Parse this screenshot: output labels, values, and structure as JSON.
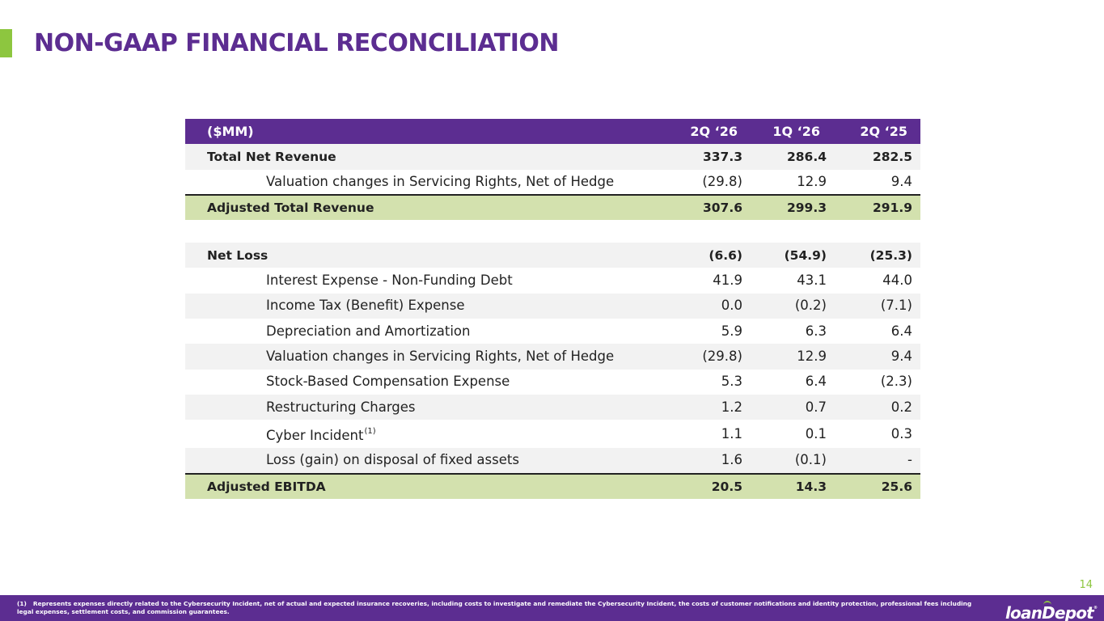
{
  "header": {
    "title": "NON-GAAP FINANCIAL RECONCILIATION"
  },
  "table": {
    "columns": [
      "($MM)",
      "2Q ‘26",
      "1Q ‘26",
      "2Q ‘25"
    ],
    "revenue_rows": [
      {
        "label": "Total Net Revenue",
        "values": [
          "337.3",
          "286.4",
          "282.5"
        ]
      },
      {
        "label": "Valuation changes in Servicing Rights, Net of Hedge",
        "values": [
          "(29.8)",
          "12.9",
          "9.4"
        ]
      }
    ],
    "adjusted_revenue": {
      "label": "Adjusted Total Revenue",
      "values": [
        "307.6",
        "299.3",
        "291.9"
      ]
    },
    "net_loss": {
      "label": "Net Loss",
      "values": [
        "(6.6)",
        "(54.9)",
        "(25.3)"
      ]
    },
    "adjustments": [
      {
        "label": "Interest Expense - Non-Funding Debt",
        "values": [
          "41.9",
          "43.1",
          "44.0"
        ]
      },
      {
        "label": "Income Tax (Benefit) Expense",
        "values": [
          "0.0",
          "(0.2)",
          "(7.1)"
        ]
      },
      {
        "label": "Depreciation and Amortization",
        "values": [
          "5.9",
          "6.3",
          "6.4"
        ]
      },
      {
        "label": "Valuation changes in Servicing Rights, Net of Hedge",
        "values": [
          "(29.8)",
          "12.9",
          "9.4"
        ]
      },
      {
        "label": "Stock-Based Compensation Expense",
        "values": [
          "5.3",
          "6.4",
          "(2.3)"
        ]
      },
      {
        "label": "Restructuring Charges",
        "values": [
          "1.2",
          "0.7",
          "0.2"
        ]
      },
      {
        "label": "Cyber Incident",
        "superscript": "(1)",
        "values": [
          "1.1",
          "0.1",
          "0.3"
        ]
      },
      {
        "label": "Loss (gain) on disposal of fixed assets",
        "values": [
          "1.6",
          "(0.1)",
          "-"
        ]
      }
    ],
    "adjusted_ebitda": {
      "label": "Adjusted EBITDA",
      "values": [
        "20.5",
        "14.3",
        "25.6"
      ]
    }
  },
  "page_number": "14",
  "footer": {
    "footnote_mark": "(1)",
    "footnote_text": "Represents expenses directly related to the Cybersecurity Incident, net of actual and expected insurance recoveries, including costs to investigate and remediate the Cybersecurity Incident, the costs of customer notifications and identity protection, professional fees including legal expenses, settlement costs, and commission guarantees.",
    "logo": {
      "part1": "loan",
      "part2": "D",
      "part3": "epot",
      "tm": "®"
    }
  },
  "colors": {
    "brand_purple": "#5C2D91",
    "brand_green": "#8DC63F",
    "total_row_green": "#D3E1AE",
    "row_shade": "#F2F2F2"
  }
}
